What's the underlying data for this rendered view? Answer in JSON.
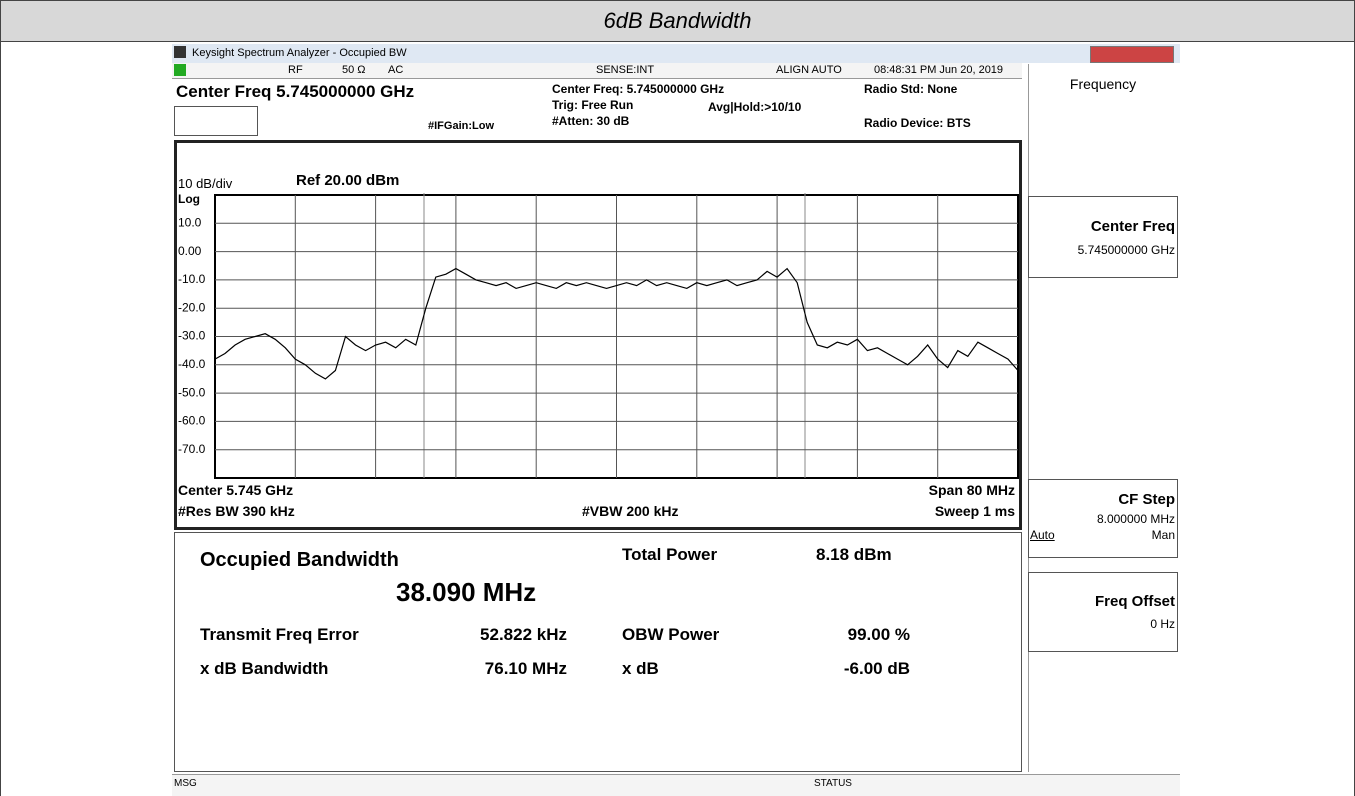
{
  "page_title": "6dB Bandwidth",
  "window_title": "Keysight Spectrum Analyzer - Occupied BW",
  "status_bar": [
    "RF",
    "50 Ω",
    "AC",
    "SENSE:INT",
    "ALIGN AUTO",
    "08:48:31 PM Jun 20, 2019"
  ],
  "settings": {
    "center_freq": "Center Freq 5.745000000 GHz",
    "if_gain": "#IFGain:Low",
    "center_freq_info": "Center Freq: 5.745000000 GHz",
    "trig": "Trig: Free Run",
    "avg_hold": "Avg|Hold:>10/10",
    "atten": "#Atten: 30 dB",
    "radio_std": "Radio Std: None",
    "radio_device": "Radio Device: BTS"
  },
  "chart_data": {
    "type": "line",
    "scale_label": "10 dB/div",
    "ref_level": "Ref 20.00 dBm",
    "y_scale": "Log",
    "color": "#000000",
    "values": [
      -38,
      -36,
      -33,
      -31,
      -30,
      -29,
      -31,
      -34,
      -38,
      -40,
      -43,
      -45,
      -42,
      -30,
      -33,
      -35,
      -33,
      -32,
      -34,
      -31,
      -33,
      -20,
      -9,
      -8,
      -6,
      -8,
      -10,
      -11,
      -12,
      -11,
      -13,
      -12,
      -11,
      -12,
      -13,
      -11,
      -12,
      -11,
      -12,
      -13,
      -12,
      -11,
      -12,
      -10,
      -12,
      -11,
      -12,
      -13,
      -11,
      -12,
      -11,
      -10,
      -12,
      -11,
      -10,
      -7,
      -9,
      -6,
      -11,
      -25,
      -33,
      -34,
      -32,
      -33,
      -31,
      -35,
      -34,
      -36,
      -38,
      -40,
      -37,
      -33,
      -38,
      -41,
      -35,
      -37,
      -32,
      -34,
      -36,
      -38,
      -42
    ],
    "ylim": [
      -80,
      20
    ],
    "yticks": [
      {
        "value": 10,
        "label": "10.0"
      },
      {
        "value": 0,
        "label": "0.00"
      },
      {
        "value": -10,
        "label": "-10.0"
      },
      {
        "value": -20,
        "label": "-20.0"
      },
      {
        "value": -30,
        "label": "-30.0"
      },
      {
        "value": -40,
        "label": "-40.0"
      },
      {
        "value": -50,
        "label": "-50.0"
      },
      {
        "value": -60,
        "label": "-60.0"
      },
      {
        "value": -70,
        "label": "-70.0"
      }
    ],
    "grid": true,
    "footer": {
      "center": "Center 5.745 GHz",
      "res_bw": "#Res BW 390 kHz",
      "vbw": "#VBW 200 kHz",
      "span": "Span 80 MHz",
      "sweep": "Sweep 1 ms"
    }
  },
  "results": {
    "title": "Occupied Bandwidth",
    "value": "38.090 MHz",
    "total_power_label": "Total Power",
    "total_power": "8.18 dBm",
    "rows": [
      [
        "Transmit Freq Error",
        "52.822 kHz",
        "OBW Power",
        "99.00 %"
      ],
      [
        "x dB Bandwidth",
        "76.10 MHz",
        "x dB",
        "-6.00 dB"
      ]
    ]
  },
  "softkeys": {
    "menu": "Frequency",
    "keys": [
      {
        "label": "Center Freq",
        "value": "5.745000000 GHz"
      },
      {
        "label": "CF Step",
        "value": "8.000000 MHz",
        "options": [
          "Auto",
          "Man"
        ]
      },
      {
        "label": "Freq Offset",
        "value": "0 Hz"
      }
    ]
  },
  "footer": [
    "MSG",
    "STATUS"
  ]
}
